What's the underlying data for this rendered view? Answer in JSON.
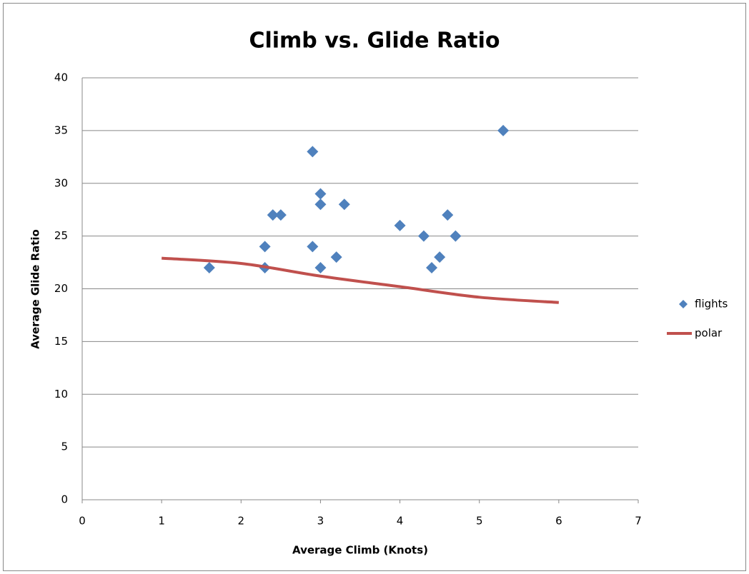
{
  "chart_data": {
    "type": "scatter",
    "title": "Climb vs. Glide Ratio",
    "x_label": "Average Climb (Knots)",
    "y_label": "Average Glide Ratio",
    "xlim": [
      0,
      7
    ],
    "xticks": [
      0,
      1,
      2,
      3,
      4,
      5,
      6,
      7
    ],
    "ylim": [
      0,
      40
    ],
    "yticks": [
      0,
      5,
      10,
      15,
      20,
      25,
      30,
      35,
      40
    ],
    "grid": true,
    "legend": "right",
    "series": [
      {
        "name": "flights",
        "type": "scatter",
        "marker": "diamond",
        "color": "#4f81bd",
        "x": [
          1.6,
          2.3,
          2.3,
          2.4,
          2.5,
          2.9,
          2.9,
          3.0,
          3.0,
          3.0,
          3.2,
          3.3,
          4.0,
          4.3,
          4.4,
          4.5,
          4.6,
          4.7,
          5.3
        ],
        "values": [
          22,
          24,
          22,
          27,
          27,
          33,
          24,
          29,
          28,
          22,
          23,
          28,
          26,
          25,
          22,
          23,
          27,
          25,
          35
        ]
      },
      {
        "name": "polar",
        "type": "line",
        "color": "#c0504d",
        "x": [
          1,
          2,
          3,
          4,
          5,
          6
        ],
        "values": [
          22.9,
          22.4,
          21.2,
          20.2,
          19.2,
          18.7
        ]
      }
    ]
  }
}
